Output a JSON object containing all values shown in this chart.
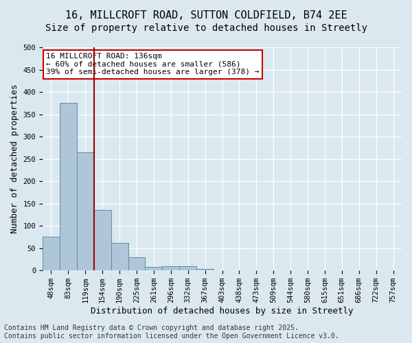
{
  "title1": "16, MILLCROFT ROAD, SUTTON COLDFIELD, B74 2EE",
  "title2": "Size of property relative to detached houses in Streetly",
  "xlabel": "Distribution of detached houses by size in Streetly",
  "ylabel": "Number of detached properties",
  "bins": [
    "48sqm",
    "83sqm",
    "119sqm",
    "154sqm",
    "190sqm",
    "225sqm",
    "261sqm",
    "296sqm",
    "332sqm",
    "367sqm",
    "403sqm",
    "438sqm",
    "473sqm",
    "509sqm",
    "544sqm",
    "580sqm",
    "615sqm",
    "651sqm",
    "686sqm",
    "722sqm",
    "757sqm"
  ],
  "values": [
    75,
    375,
    265,
    135,
    62,
    30,
    8,
    10,
    10,
    4,
    0,
    0,
    0,
    0,
    0,
    0,
    0,
    0,
    0,
    0,
    0
  ],
  "bar_color": "#aec6d8",
  "bar_edge_color": "#5a8fa8",
  "vline_x_index": 2.5,
  "vline_color": "#990000",
  "annotation_text": "16 MILLCROFT ROAD: 136sqm\n← 60% of detached houses are smaller (586)\n39% of semi-detached houses are larger (378) →",
  "annotation_box_color": "#ffffff",
  "annotation_box_edge_color": "#cc0000",
  "bg_color": "#dce8f0",
  "plot_bg_color": "#dce8f0",
  "grid_color": "#ffffff",
  "footer1": "Contains HM Land Registry data © Crown copyright and database right 2025.",
  "footer2": "Contains public sector information licensed under the Open Government Licence v3.0.",
  "ylim": [
    0,
    500
  ],
  "yticks": [
    0,
    50,
    100,
    150,
    200,
    250,
    300,
    350,
    400,
    450,
    500
  ],
  "title_fontsize": 11,
  "subtitle_fontsize": 10,
  "axis_label_fontsize": 9,
  "tick_fontsize": 7.5,
  "annotation_fontsize": 8,
  "footer_fontsize": 7
}
